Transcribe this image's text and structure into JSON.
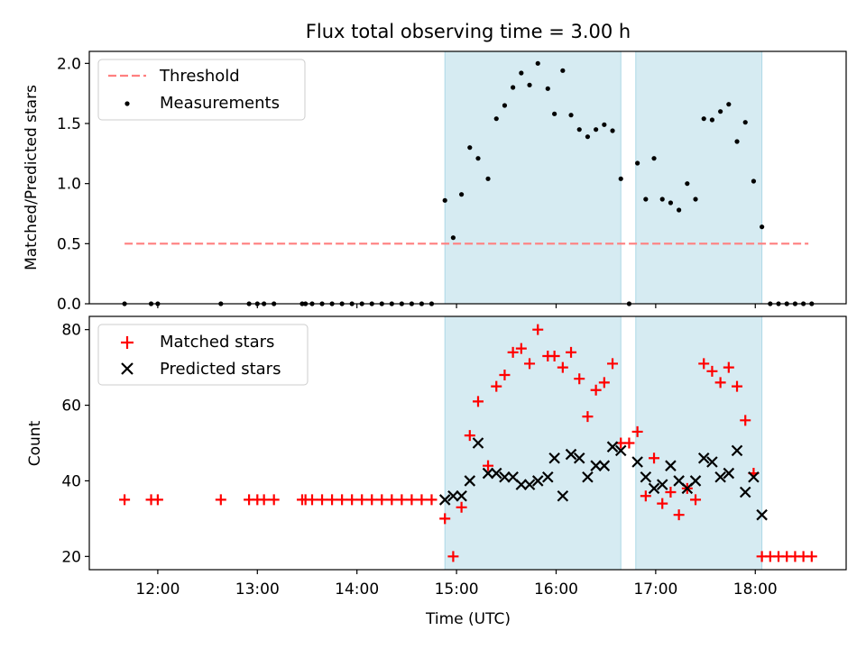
{
  "title": "Flux total observing time = 3.00 h",
  "colors": {
    "threshold": "#ff7f7f",
    "measurement": "#000000",
    "matched": "#ff0000",
    "predicted": "#000000",
    "span_fill": "#add8e6"
  },
  "chart_data": [
    {
      "type": "scatter",
      "ylabel": "Matched/Predicted stars",
      "ylim": [
        0,
        2.1
      ],
      "yticks": [
        0.0,
        0.5,
        1.0,
        1.5,
        2.0
      ],
      "ytick_labels": [
        "0.0",
        "0.5",
        "1.0",
        "1.5",
        "2.0"
      ],
      "shaded_spans": [
        [
          "14:53",
          "16:39"
        ],
        [
          "16:48",
          "18:04"
        ]
      ],
      "legend": {
        "position": "top-left",
        "entries": [
          "Threshold",
          "Measurements"
        ]
      },
      "series": [
        {
          "name": "Threshold",
          "kind": "line",
          "x": [
            "11:40",
            "18:32"
          ],
          "y": [
            0.5,
            0.5
          ]
        },
        {
          "name": "Measurements",
          "kind": "scatter",
          "points": [
            [
              "11:40",
              0
            ],
            [
              "11:56",
              0
            ],
            [
              "12:00",
              0
            ],
            [
              "12:38",
              0
            ],
            [
              "12:55",
              0
            ],
            [
              "13:00",
              0
            ],
            [
              "13:04",
              0
            ],
            [
              "13:10",
              0
            ],
            [
              "13:27",
              0
            ],
            [
              "13:29",
              0
            ],
            [
              "13:33",
              0
            ],
            [
              "13:39",
              0
            ],
            [
              "13:45",
              0
            ],
            [
              "13:51",
              0
            ],
            [
              "13:57",
              0
            ],
            [
              "14:03",
              0
            ],
            [
              "14:09",
              0
            ],
            [
              "14:15",
              0
            ],
            [
              "14:21",
              0
            ],
            [
              "14:27",
              0
            ],
            [
              "14:33",
              0
            ],
            [
              "14:39",
              0
            ],
            [
              "14:45",
              0
            ],
            [
              "14:53",
              0.86
            ],
            [
              "14:58",
              0.55
            ],
            [
              "15:03",
              0.91
            ],
            [
              "15:08",
              1.3
            ],
            [
              "15:13",
              1.21
            ],
            [
              "15:19",
              1.04
            ],
            [
              "15:24",
              1.54
            ],
            [
              "15:29",
              1.65
            ],
            [
              "15:34",
              1.8
            ],
            [
              "15:39",
              1.92
            ],
            [
              "15:44",
              1.82
            ],
            [
              "15:49",
              2.0
            ],
            [
              "15:55",
              1.79
            ],
            [
              "15:59",
              1.58
            ],
            [
              "16:04",
              1.94
            ],
            [
              "16:09",
              1.57
            ],
            [
              "16:14",
              1.45
            ],
            [
              "16:19",
              1.39
            ],
            [
              "16:24",
              1.45
            ],
            [
              "16:29",
              1.49
            ],
            [
              "16:34",
              1.44
            ],
            [
              "16:39",
              1.04
            ],
            [
              "16:44",
              0
            ],
            [
              "16:49",
              1.17
            ],
            [
              "16:54",
              0.87
            ],
            [
              "16:59",
              1.21
            ],
            [
              "17:04",
              0.87
            ],
            [
              "17:09",
              0.84
            ],
            [
              "17:14",
              0.78
            ],
            [
              "17:19",
              1.0
            ],
            [
              "17:24",
              0.87
            ],
            [
              "17:29",
              1.54
            ],
            [
              "17:34",
              1.53
            ],
            [
              "17:39",
              1.6
            ],
            [
              "17:44",
              1.66
            ],
            [
              "17:49",
              1.35
            ],
            [
              "17:54",
              1.51
            ],
            [
              "17:59",
              1.02
            ],
            [
              "18:04",
              0.64
            ],
            [
              "18:09",
              0
            ],
            [
              "18:14",
              0
            ],
            [
              "18:19",
              0
            ],
            [
              "18:24",
              0
            ],
            [
              "18:29",
              0
            ],
            [
              "18:34",
              0
            ]
          ]
        }
      ]
    },
    {
      "type": "scatter",
      "xlabel": "Time (UTC)",
      "ylabel": "Count",
      "ylim": [
        16.5,
        83.5
      ],
      "yticks": [
        20,
        40,
        60,
        80
      ],
      "ytick_labels": [
        "20",
        "40",
        "60",
        "80"
      ],
      "xticks": [
        "12:00",
        "13:00",
        "14:00",
        "15:00",
        "16:00",
        "17:00",
        "18:00"
      ],
      "xtick_labels": [
        "12:00",
        "13:00",
        "14:00",
        "15:00",
        "16:00",
        "17:00",
        "18:00"
      ],
      "shaded_spans": [
        [
          "14:53",
          "16:39"
        ],
        [
          "16:48",
          "18:04"
        ]
      ],
      "legend": {
        "position": "top-left",
        "entries": [
          "Matched stars",
          "Predicted stars"
        ]
      },
      "series": [
        {
          "name": "Matched stars",
          "marker": "plus",
          "points": [
            [
              "11:40",
              35
            ],
            [
              "11:56",
              35
            ],
            [
              "12:00",
              35
            ],
            [
              "12:38",
              35
            ],
            [
              "12:55",
              35
            ],
            [
              "13:00",
              35
            ],
            [
              "13:04",
              35
            ],
            [
              "13:10",
              35
            ],
            [
              "13:27",
              35
            ],
            [
              "13:29",
              35
            ],
            [
              "13:33",
              35
            ],
            [
              "13:39",
              35
            ],
            [
              "13:45",
              35
            ],
            [
              "13:51",
              35
            ],
            [
              "13:57",
              35
            ],
            [
              "14:03",
              35
            ],
            [
              "14:09",
              35
            ],
            [
              "14:15",
              35
            ],
            [
              "14:21",
              35
            ],
            [
              "14:27",
              35
            ],
            [
              "14:33",
              35
            ],
            [
              "14:39",
              35
            ],
            [
              "14:45",
              35
            ],
            [
              "14:53",
              30
            ],
            [
              "14:58",
              20
            ],
            [
              "15:03",
              33
            ],
            [
              "15:08",
              52
            ],
            [
              "15:13",
              61
            ],
            [
              "15:19",
              44
            ],
            [
              "15:24",
              65
            ],
            [
              "15:29",
              68
            ],
            [
              "15:34",
              74
            ],
            [
              "15:39",
              75
            ],
            [
              "15:44",
              71
            ],
            [
              "15:49",
              80
            ],
            [
              "15:55",
              73
            ],
            [
              "15:59",
              73
            ],
            [
              "16:04",
              70
            ],
            [
              "16:09",
              74
            ],
            [
              "16:14",
              67
            ],
            [
              "16:19",
              57
            ],
            [
              "16:24",
              64
            ],
            [
              "16:29",
              66
            ],
            [
              "16:34",
              71
            ],
            [
              "16:39",
              50
            ],
            [
              "16:44",
              50
            ],
            [
              "16:49",
              53
            ],
            [
              "16:54",
              36
            ],
            [
              "16:59",
              46
            ],
            [
              "17:04",
              34
            ],
            [
              "17:09",
              37
            ],
            [
              "17:14",
              31
            ],
            [
              "17:19",
              38
            ],
            [
              "17:24",
              35
            ],
            [
              "17:29",
              71
            ],
            [
              "17:34",
              69
            ],
            [
              "17:39",
              66
            ],
            [
              "17:44",
              70
            ],
            [
              "17:49",
              65
            ],
            [
              "17:54",
              56
            ],
            [
              "17:59",
              42
            ],
            [
              "18:04",
              20
            ],
            [
              "18:09",
              20
            ],
            [
              "18:14",
              20
            ],
            [
              "18:19",
              20
            ],
            [
              "18:24",
              20
            ],
            [
              "18:29",
              20
            ],
            [
              "18:34",
              20
            ]
          ]
        },
        {
          "name": "Predicted stars",
          "marker": "x",
          "points": [
            [
              "14:53",
              35
            ],
            [
              "14:58",
              36
            ],
            [
              "15:03",
              36
            ],
            [
              "15:08",
              40
            ],
            [
              "15:13",
              50
            ],
            [
              "15:19",
              42
            ],
            [
              "15:24",
              42
            ],
            [
              "15:29",
              41
            ],
            [
              "15:34",
              41
            ],
            [
              "15:39",
              39
            ],
            [
              "15:44",
              39
            ],
            [
              "15:49",
              40
            ],
            [
              "15:55",
              41
            ],
            [
              "15:59",
              46
            ],
            [
              "16:04",
              36
            ],
            [
              "16:09",
              47
            ],
            [
              "16:14",
              46
            ],
            [
              "16:19",
              41
            ],
            [
              "16:24",
              44
            ],
            [
              "16:29",
              44
            ],
            [
              "16:34",
              49
            ],
            [
              "16:39",
              48
            ],
            [
              "16:49",
              45
            ],
            [
              "16:54",
              41
            ],
            [
              "16:59",
              38
            ],
            [
              "17:04",
              39
            ],
            [
              "17:09",
              44
            ],
            [
              "17:14",
              40
            ],
            [
              "17:19",
              38
            ],
            [
              "17:24",
              40
            ],
            [
              "17:29",
              46
            ],
            [
              "17:34",
              45
            ],
            [
              "17:39",
              41
            ],
            [
              "17:44",
              42
            ],
            [
              "17:49",
              48
            ],
            [
              "17:54",
              37
            ],
            [
              "17:59",
              41
            ],
            [
              "18:04",
              31
            ]
          ]
        }
      ]
    }
  ]
}
